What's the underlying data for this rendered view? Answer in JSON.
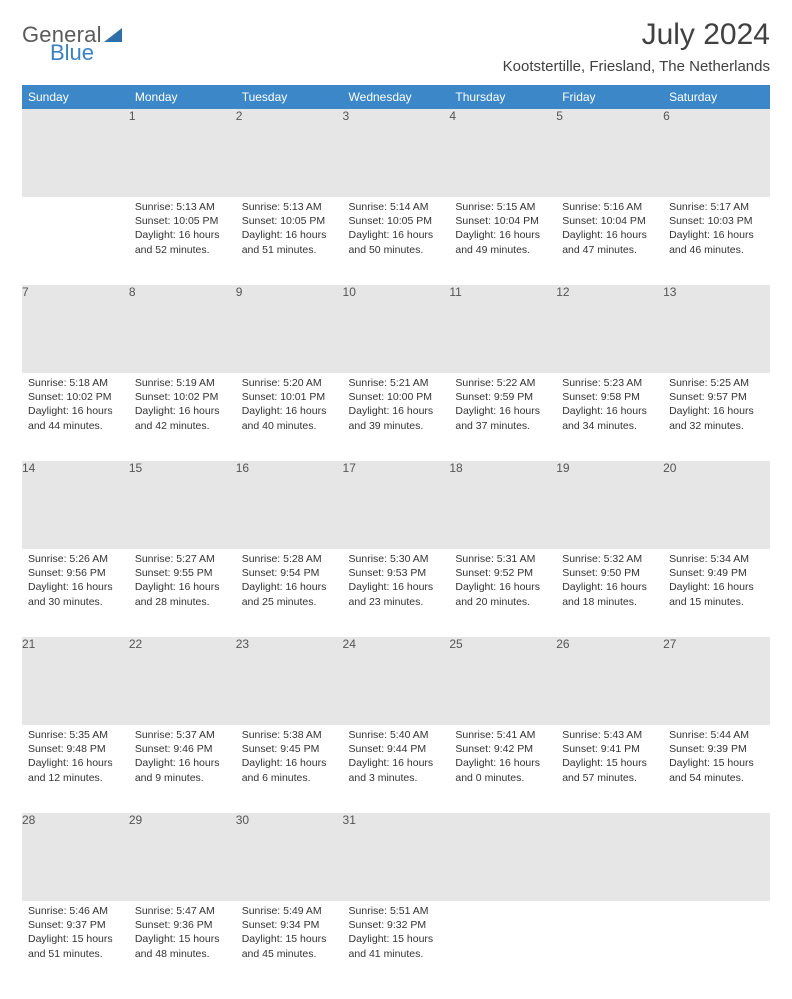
{
  "logo": {
    "general": "General",
    "blue": "Blue"
  },
  "title": "July 2024",
  "location": "Kootstertille, Friesland, The Netherlands",
  "colors": {
    "header_bg": "#3b87c8",
    "header_text": "#ffffff",
    "daynum_bg": "#e6e6e6",
    "text": "#333333",
    "page_bg": "#ffffff"
  },
  "weekdays": [
    "Sunday",
    "Monday",
    "Tuesday",
    "Wednesday",
    "Thursday",
    "Friday",
    "Saturday"
  ],
  "weeks": [
    [
      null,
      {
        "n": "1",
        "sunrise": "Sunrise: 5:13 AM",
        "sunset": "Sunset: 10:05 PM",
        "day": "Daylight: 16 hours and 52 minutes."
      },
      {
        "n": "2",
        "sunrise": "Sunrise: 5:13 AM",
        "sunset": "Sunset: 10:05 PM",
        "day": "Daylight: 16 hours and 51 minutes."
      },
      {
        "n": "3",
        "sunrise": "Sunrise: 5:14 AM",
        "sunset": "Sunset: 10:05 PM",
        "day": "Daylight: 16 hours and 50 minutes."
      },
      {
        "n": "4",
        "sunrise": "Sunrise: 5:15 AM",
        "sunset": "Sunset: 10:04 PM",
        "day": "Daylight: 16 hours and 49 minutes."
      },
      {
        "n": "5",
        "sunrise": "Sunrise: 5:16 AM",
        "sunset": "Sunset: 10:04 PM",
        "day": "Daylight: 16 hours and 47 minutes."
      },
      {
        "n": "6",
        "sunrise": "Sunrise: 5:17 AM",
        "sunset": "Sunset: 10:03 PM",
        "day": "Daylight: 16 hours and 46 minutes."
      }
    ],
    [
      {
        "n": "7",
        "sunrise": "Sunrise: 5:18 AM",
        "sunset": "Sunset: 10:02 PM",
        "day": "Daylight: 16 hours and 44 minutes."
      },
      {
        "n": "8",
        "sunrise": "Sunrise: 5:19 AM",
        "sunset": "Sunset: 10:02 PM",
        "day": "Daylight: 16 hours and 42 minutes."
      },
      {
        "n": "9",
        "sunrise": "Sunrise: 5:20 AM",
        "sunset": "Sunset: 10:01 PM",
        "day": "Daylight: 16 hours and 40 minutes."
      },
      {
        "n": "10",
        "sunrise": "Sunrise: 5:21 AM",
        "sunset": "Sunset: 10:00 PM",
        "day": "Daylight: 16 hours and 39 minutes."
      },
      {
        "n": "11",
        "sunrise": "Sunrise: 5:22 AM",
        "sunset": "Sunset: 9:59 PM",
        "day": "Daylight: 16 hours and 37 minutes."
      },
      {
        "n": "12",
        "sunrise": "Sunrise: 5:23 AM",
        "sunset": "Sunset: 9:58 PM",
        "day": "Daylight: 16 hours and 34 minutes."
      },
      {
        "n": "13",
        "sunrise": "Sunrise: 5:25 AM",
        "sunset": "Sunset: 9:57 PM",
        "day": "Daylight: 16 hours and 32 minutes."
      }
    ],
    [
      {
        "n": "14",
        "sunrise": "Sunrise: 5:26 AM",
        "sunset": "Sunset: 9:56 PM",
        "day": "Daylight: 16 hours and 30 minutes."
      },
      {
        "n": "15",
        "sunrise": "Sunrise: 5:27 AM",
        "sunset": "Sunset: 9:55 PM",
        "day": "Daylight: 16 hours and 28 minutes."
      },
      {
        "n": "16",
        "sunrise": "Sunrise: 5:28 AM",
        "sunset": "Sunset: 9:54 PM",
        "day": "Daylight: 16 hours and 25 minutes."
      },
      {
        "n": "17",
        "sunrise": "Sunrise: 5:30 AM",
        "sunset": "Sunset: 9:53 PM",
        "day": "Daylight: 16 hours and 23 minutes."
      },
      {
        "n": "18",
        "sunrise": "Sunrise: 5:31 AM",
        "sunset": "Sunset: 9:52 PM",
        "day": "Daylight: 16 hours and 20 minutes."
      },
      {
        "n": "19",
        "sunrise": "Sunrise: 5:32 AM",
        "sunset": "Sunset: 9:50 PM",
        "day": "Daylight: 16 hours and 18 minutes."
      },
      {
        "n": "20",
        "sunrise": "Sunrise: 5:34 AM",
        "sunset": "Sunset: 9:49 PM",
        "day": "Daylight: 16 hours and 15 minutes."
      }
    ],
    [
      {
        "n": "21",
        "sunrise": "Sunrise: 5:35 AM",
        "sunset": "Sunset: 9:48 PM",
        "day": "Daylight: 16 hours and 12 minutes."
      },
      {
        "n": "22",
        "sunrise": "Sunrise: 5:37 AM",
        "sunset": "Sunset: 9:46 PM",
        "day": "Daylight: 16 hours and 9 minutes."
      },
      {
        "n": "23",
        "sunrise": "Sunrise: 5:38 AM",
        "sunset": "Sunset: 9:45 PM",
        "day": "Daylight: 16 hours and 6 minutes."
      },
      {
        "n": "24",
        "sunrise": "Sunrise: 5:40 AM",
        "sunset": "Sunset: 9:44 PM",
        "day": "Daylight: 16 hours and 3 minutes."
      },
      {
        "n": "25",
        "sunrise": "Sunrise: 5:41 AM",
        "sunset": "Sunset: 9:42 PM",
        "day": "Daylight: 16 hours and 0 minutes."
      },
      {
        "n": "26",
        "sunrise": "Sunrise: 5:43 AM",
        "sunset": "Sunset: 9:41 PM",
        "day": "Daylight: 15 hours and 57 minutes."
      },
      {
        "n": "27",
        "sunrise": "Sunrise: 5:44 AM",
        "sunset": "Sunset: 9:39 PM",
        "day": "Daylight: 15 hours and 54 minutes."
      }
    ],
    [
      {
        "n": "28",
        "sunrise": "Sunrise: 5:46 AM",
        "sunset": "Sunset: 9:37 PM",
        "day": "Daylight: 15 hours and 51 minutes."
      },
      {
        "n": "29",
        "sunrise": "Sunrise: 5:47 AM",
        "sunset": "Sunset: 9:36 PM",
        "day": "Daylight: 15 hours and 48 minutes."
      },
      {
        "n": "30",
        "sunrise": "Sunrise: 5:49 AM",
        "sunset": "Sunset: 9:34 PM",
        "day": "Daylight: 15 hours and 45 minutes."
      },
      {
        "n": "31",
        "sunrise": "Sunrise: 5:51 AM",
        "sunset": "Sunset: 9:32 PM",
        "day": "Daylight: 15 hours and 41 minutes."
      },
      null,
      null,
      null
    ]
  ]
}
